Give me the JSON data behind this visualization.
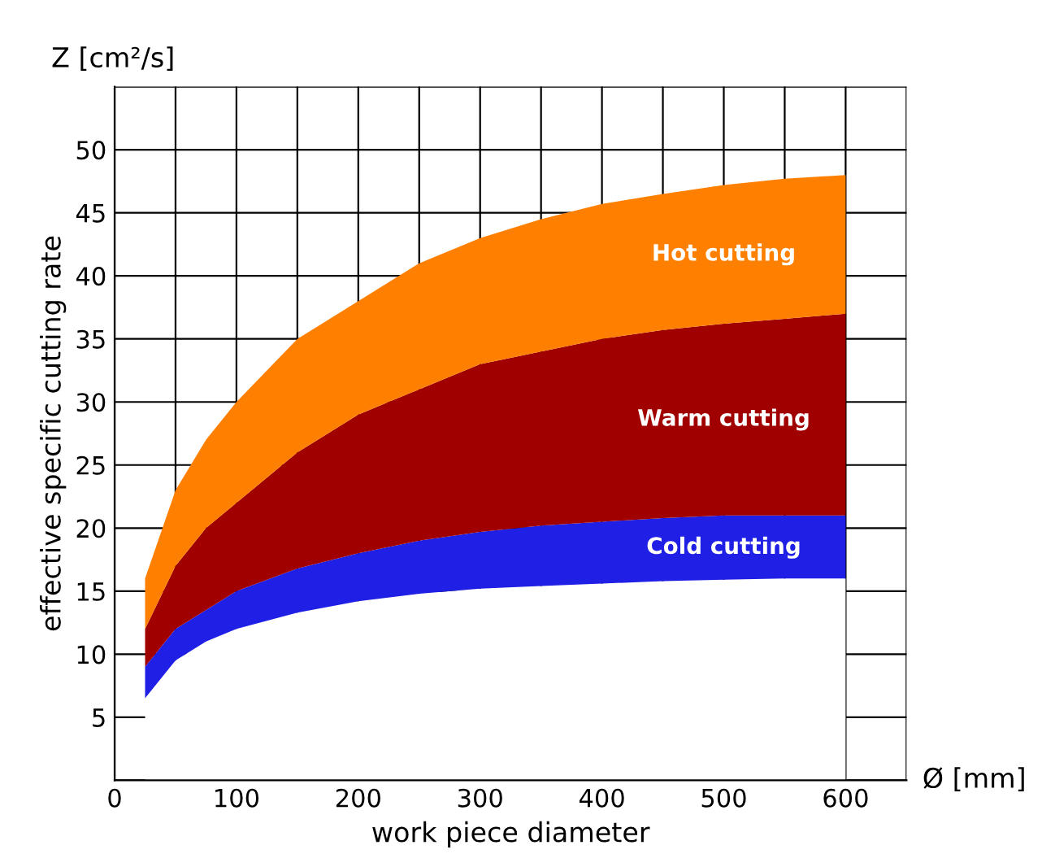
{
  "chart_data": {
    "type": "area",
    "stacked": true,
    "xlabel": "work piece diameter",
    "ylabel": "effective specific cutting rate",
    "annotations": [
      "Z [cm²/s]",
      "Ø [mm]"
    ],
    "x": [
      25,
      50,
      75,
      100,
      150,
      200,
      250,
      300,
      350,
      400,
      450,
      500,
      550,
      600
    ],
    "series": [
      {
        "color": "#ffffff",
        "values": [
          6.5,
          9.5,
          11,
          12,
          13.3,
          14.2,
          14.8,
          15.2,
          15.4,
          15.6,
          15.8,
          15.9,
          16,
          16
        ]
      },
      {
        "name": "Cold cutting",
        "color": "#1f1fe6",
        "values": [
          2.5,
          2.5,
          2.5,
          3,
          3.5,
          3.8,
          4.2,
          4.5,
          4.8,
          4.9,
          5,
          5.1,
          5,
          5
        ]
      },
      {
        "name": "Warm cutting",
        "color": "#a00000",
        "values": [
          3,
          5,
          6.5,
          7,
          9.2,
          11,
          12,
          13.3,
          13.8,
          14.5,
          14.9,
          15.2,
          15.6,
          16
        ]
      },
      {
        "name": "Hot cutting",
        "color": "#ff8000",
        "values": [
          4,
          6,
          7,
          8,
          9,
          9,
          10,
          10,
          10.5,
          10.7,
          10.8,
          11,
          11.1,
          11
        ]
      }
    ],
    "xlim": [
      0,
      650
    ],
    "ylim": [
      0,
      55
    ],
    "xticks": [
      0,
      {
        "value": 50,
        "label": null
      },
      100,
      {
        "value": 150,
        "label": null
      },
      200,
      {
        "value": 250,
        "label": null
      },
      300,
      {
        "value": 350,
        "label": null
      },
      400,
      {
        "value": 450,
        "label": null
      },
      500,
      {
        "value": 550,
        "label": null
      },
      600,
      {
        "value": 650,
        "label": null
      }
    ],
    "yticks": [
      {
        "value": 0,
        "label": null
      },
      5,
      10,
      15,
      20,
      25,
      30,
      35,
      40,
      45,
      50,
      {
        "value": 55,
        "label": null
      }
    ],
    "grid": true,
    "legend": false
  }
}
